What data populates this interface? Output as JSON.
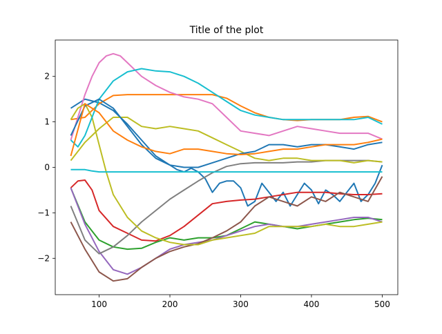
{
  "chart_data": {
    "type": "line",
    "title": "Title of the plot",
    "xlabel": "",
    "ylabel": "",
    "xlim": [
      38,
      522
    ],
    "ylim": [
      -2.8,
      2.8
    ],
    "xticks": [
      100,
      200,
      300,
      400,
      500
    ],
    "yticks": [
      -2,
      -1,
      0,
      1,
      2
    ],
    "grid": false,
    "series": [
      {
        "color": "#1f77b4",
        "x": [
          60,
          80,
          100,
          120,
          140,
          160,
          180,
          200,
          210,
          220,
          230,
          240,
          250,
          260,
          270,
          280,
          290,
          300,
          310,
          320,
          330,
          340,
          350,
          360,
          370,
          380,
          390,
          400,
          410,
          420,
          430,
          440,
          450,
          460,
          470,
          480,
          490,
          500
        ],
        "values": [
          1.3,
          1.5,
          1.42,
          1.25,
          0.95,
          0.6,
          0.25,
          0.05,
          -0.05,
          -0.1,
          -0.02,
          -0.1,
          -0.25,
          -0.55,
          -0.35,
          -0.3,
          -0.3,
          -0.45,
          -0.85,
          -0.75,
          -0.35,
          -0.55,
          -0.75,
          -0.55,
          -0.85,
          -0.6,
          -0.35,
          -0.5,
          -0.8,
          -0.5,
          -0.6,
          -0.75,
          -0.55,
          -0.35,
          -0.75,
          -0.6,
          -0.35,
          0.05
        ]
      },
      {
        "color": "#ff7f0e",
        "x": [
          60,
          80,
          100,
          120,
          140,
          160,
          180,
          200,
          220,
          240,
          260,
          280,
          300,
          320,
          340,
          360,
          380,
          400,
          420,
          440,
          460,
          480,
          500
        ],
        "values": [
          1.05,
          1.1,
          1.4,
          1.58,
          1.6,
          1.6,
          1.6,
          1.6,
          1.6,
          1.6,
          1.6,
          1.52,
          1.35,
          1.2,
          1.1,
          1.05,
          1.03,
          1.05,
          1.05,
          1.05,
          1.1,
          1.12,
          1.0
        ]
      },
      {
        "color": "#2ca02c",
        "x": [
          60,
          80,
          100,
          120,
          140,
          160,
          180,
          200,
          220,
          240,
          260,
          280,
          300,
          320,
          340,
          360,
          380,
          400,
          420,
          440,
          460,
          480,
          500
        ],
        "values": [
          -0.45,
          -1.2,
          -1.6,
          -1.75,
          -1.8,
          -1.78,
          -1.65,
          -1.55,
          -1.6,
          -1.55,
          -1.55,
          -1.5,
          -1.35,
          -1.2,
          -1.25,
          -1.3,
          -1.35,
          -1.3,
          -1.25,
          -1.2,
          -1.15,
          -1.12,
          -1.15
        ]
      },
      {
        "color": "#d62728",
        "x": [
          60,
          70,
          80,
          90,
          100,
          120,
          140,
          160,
          180,
          200,
          220,
          240,
          260,
          280,
          300,
          320,
          340,
          360,
          380,
          400,
          420,
          440,
          460,
          480,
          500
        ],
        "values": [
          -0.45,
          -0.3,
          -0.28,
          -0.5,
          -0.95,
          -1.3,
          -1.45,
          -1.6,
          -1.62,
          -1.5,
          -1.3,
          -1.05,
          -0.8,
          -0.75,
          -0.72,
          -0.7,
          -0.65,
          -0.6,
          -0.55,
          -0.55,
          -0.55,
          -0.58,
          -0.6,
          -0.6,
          -0.58
        ]
      },
      {
        "color": "#9467bd",
        "x": [
          60,
          80,
          100,
          120,
          140,
          160,
          180,
          200,
          220,
          240,
          260,
          280,
          300,
          320,
          340,
          360,
          380,
          400,
          420,
          440,
          460,
          480,
          500
        ],
        "values": [
          -0.45,
          -1.25,
          -1.85,
          -2.25,
          -2.35,
          -2.2,
          -2.0,
          -1.8,
          -1.7,
          -1.65,
          -1.6,
          -1.5,
          -1.4,
          -1.3,
          -1.25,
          -1.3,
          -1.3,
          -1.25,
          -1.2,
          -1.15,
          -1.1,
          -1.1,
          -1.2
        ]
      },
      {
        "color": "#8c564b",
        "x": [
          60,
          80,
          100,
          120,
          140,
          160,
          180,
          200,
          220,
          240,
          260,
          280,
          300,
          320,
          340,
          360,
          380,
          400,
          420,
          440,
          460,
          480,
          500
        ],
        "values": [
          -1.2,
          -1.8,
          -2.3,
          -2.5,
          -2.45,
          -2.2,
          -2.0,
          -1.85,
          -1.75,
          -1.68,
          -1.55,
          -1.4,
          -1.2,
          -0.85,
          -0.65,
          -0.75,
          -0.85,
          -0.65,
          -0.75,
          -0.55,
          -0.65,
          -0.75,
          -0.2
        ]
      },
      {
        "color": "#e377c2",
        "x": [
          60,
          80,
          90,
          100,
          110,
          120,
          130,
          140,
          160,
          180,
          200,
          220,
          240,
          260,
          280,
          300,
          320,
          340,
          360,
          380,
          400,
          420,
          440,
          460,
          480,
          500
        ],
        "values": [
          0.6,
          1.6,
          2.0,
          2.3,
          2.45,
          2.5,
          2.45,
          2.3,
          2.0,
          1.8,
          1.65,
          1.55,
          1.5,
          1.4,
          1.1,
          0.8,
          0.75,
          0.7,
          0.8,
          0.9,
          0.85,
          0.8,
          0.75,
          0.75,
          0.75,
          0.62
        ]
      },
      {
        "color": "#7f7f7f",
        "x": [
          60,
          80,
          100,
          120,
          140,
          160,
          180,
          200,
          220,
          240,
          260,
          280,
          300,
          320,
          340,
          360,
          380,
          400,
          420,
          440,
          460,
          480,
          500
        ],
        "values": [
          -0.85,
          -1.6,
          -1.9,
          -1.75,
          -1.5,
          -1.2,
          -0.95,
          -0.7,
          -0.5,
          -0.3,
          -0.12,
          0.02,
          0.08,
          0.1,
          0.1,
          0.1,
          0.12,
          0.12,
          0.15,
          0.15,
          0.15,
          0.15,
          0.12
        ]
      },
      {
        "color": "#bcbd22",
        "x": [
          60,
          70,
          80,
          90,
          100,
          110,
          120,
          140,
          160,
          180,
          200,
          220,
          240,
          260,
          280,
          300,
          320,
          340,
          360,
          380,
          400,
          420,
          440,
          460,
          480,
          500
        ],
        "values": [
          1.05,
          1.3,
          1.4,
          1.1,
          0.5,
          -0.1,
          -0.6,
          -1.1,
          -1.4,
          -1.55,
          -1.65,
          -1.7,
          -1.7,
          -1.6,
          -1.55,
          -1.5,
          -1.45,
          -1.3,
          -1.3,
          -1.3,
          -1.3,
          -1.25,
          -1.3,
          -1.3,
          -1.25,
          -1.2
        ]
      },
      {
        "color": "#bcbd22",
        "x": [
          60,
          80,
          100,
          120,
          140,
          160,
          180,
          200,
          220,
          240,
          260,
          280,
          300,
          320,
          340,
          360,
          380,
          400,
          420,
          440,
          460,
          480,
          500
        ],
        "values": [
          0.15,
          0.55,
          0.85,
          1.1,
          1.1,
          0.9,
          0.85,
          0.9,
          0.85,
          0.8,
          0.65,
          0.5,
          0.35,
          0.2,
          0.15,
          0.2,
          0.2,
          0.15,
          0.15,
          0.15,
          0.1,
          0.15,
          0.12
        ]
      },
      {
        "color": "#17becf",
        "x": [
          60,
          70,
          80,
          90,
          100,
          120,
          140,
          160,
          180,
          200,
          220,
          240,
          260,
          280,
          300,
          320,
          340,
          360,
          380,
          400,
          420,
          440,
          460,
          480,
          500
        ],
        "values": [
          0.6,
          0.45,
          0.7,
          1.1,
          1.5,
          1.9,
          2.1,
          2.17,
          2.12,
          2.1,
          2.0,
          1.85,
          1.65,
          1.45,
          1.25,
          1.15,
          1.1,
          1.05,
          1.05,
          1.05,
          1.05,
          1.05,
          1.05,
          1.1,
          0.95
        ]
      },
      {
        "color": "#17becf",
        "x": [
          60,
          70,
          80,
          90,
          100,
          150,
          200,
          300,
          400,
          500
        ],
        "values": [
          -0.05,
          -0.05,
          -0.05,
          -0.08,
          -0.1,
          -0.1,
          -0.1,
          -0.1,
          -0.1,
          -0.1
        ]
      },
      {
        "color": "#1f77b4",
        "x": [
          60,
          80,
          100,
          120,
          140,
          160,
          180,
          200,
          220,
          240,
          260,
          280,
          300,
          320,
          340,
          360,
          380,
          400,
          420,
          440,
          460,
          480,
          500
        ],
        "values": [
          0.7,
          1.35,
          1.5,
          1.3,
          0.9,
          0.5,
          0.2,
          0.05,
          0.0,
          0.0,
          0.1,
          0.2,
          0.3,
          0.35,
          0.5,
          0.5,
          0.45,
          0.5,
          0.5,
          0.45,
          0.4,
          0.5,
          0.55
        ]
      },
      {
        "color": "#ff7f0e",
        "x": [
          60,
          80,
          100,
          120,
          140,
          160,
          180,
          200,
          220,
          240,
          260,
          280,
          300,
          320,
          340,
          360,
          380,
          400,
          420,
          440,
          460,
          480,
          500
        ],
        "values": [
          0.25,
          1.4,
          1.2,
          0.8,
          0.6,
          0.45,
          0.35,
          0.3,
          0.4,
          0.4,
          0.35,
          0.3,
          0.28,
          0.3,
          0.35,
          0.4,
          0.4,
          0.45,
          0.5,
          0.5,
          0.5,
          0.55,
          0.62
        ]
      }
    ]
  }
}
